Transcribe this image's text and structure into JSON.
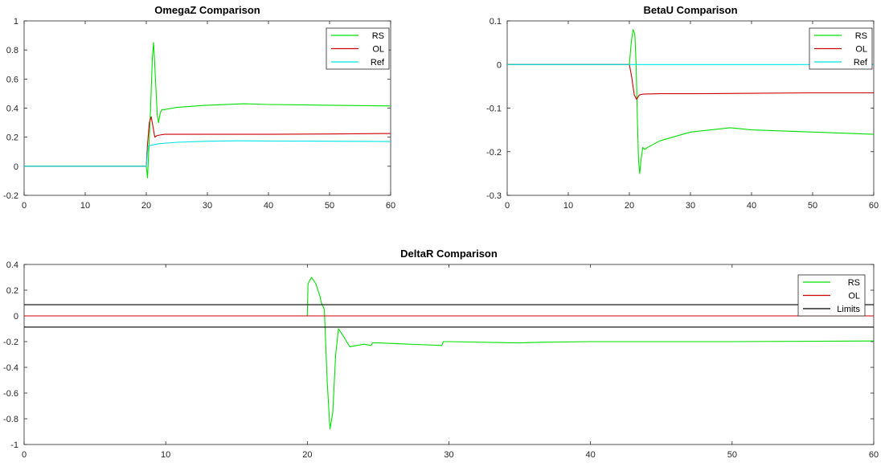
{
  "chart_data": [
    {
      "type": "line",
      "title": "OmegaZ Comparison",
      "xlabel": "",
      "ylabel": "",
      "xlim": [
        0,
        60
      ],
      "ylim": [
        -0.2,
        1
      ],
      "xticks": [
        0,
        10,
        20,
        30,
        40,
        50,
        60
      ],
      "xtick_labels": [
        "0",
        "10",
        "20",
        "30",
        "40",
        "50",
        "60"
      ],
      "yticks": [
        -0.2,
        0,
        0.2,
        0.4,
        0.6,
        0.8,
        1
      ],
      "ytick_labels": [
        "-0.2",
        "0",
        "0.2",
        "0.4",
        "0.6",
        "0.8",
        "1"
      ],
      "grid": false,
      "legend_position": "top-right",
      "series": [
        {
          "name": "RS",
          "color": "#00e000",
          "x": [
            0,
            20,
            20.2,
            20.4,
            20.7,
            21,
            21.2,
            21.5,
            21.8,
            22,
            22.3,
            22.6,
            23,
            25,
            30,
            36,
            40,
            50,
            60
          ],
          "y": [
            0,
            0,
            -0.08,
            0.1,
            0.4,
            0.75,
            0.85,
            0.6,
            0.35,
            0.3,
            0.37,
            0.39,
            0.39,
            0.405,
            0.42,
            0.43,
            0.425,
            0.42,
            0.415
          ]
        },
        {
          "name": "OL",
          "color": "#cc0000",
          "x": [
            0,
            20,
            20.2,
            20.5,
            20.8,
            21.1,
            21.4,
            21.7,
            22.2,
            23,
            30,
            40,
            50,
            60
          ],
          "y": [
            0,
            0,
            0.15,
            0.3,
            0.34,
            0.27,
            0.2,
            0.21,
            0.215,
            0.22,
            0.22,
            0.22,
            0.222,
            0.225
          ]
        },
        {
          "name": "Ref",
          "color": "#00e5e5",
          "x": [
            0,
            20,
            20.3,
            22,
            25,
            30,
            35,
            40,
            50,
            60
          ],
          "y": [
            0,
            0,
            0.14,
            0.155,
            0.165,
            0.172,
            0.175,
            0.174,
            0.172,
            0.17
          ]
        }
      ]
    },
    {
      "type": "line",
      "title": "BetaU Comparison",
      "xlabel": "",
      "ylabel": "",
      "xlim": [
        0,
        60
      ],
      "ylim": [
        -0.3,
        0.1
      ],
      "xticks": [
        0,
        10,
        20,
        30,
        40,
        50,
        60
      ],
      "xtick_labels": [
        "0",
        "10",
        "20",
        "30",
        "40",
        "50",
        "60"
      ],
      "yticks": [
        -0.3,
        -0.2,
        -0.1,
        0,
        0.1
      ],
      "ytick_labels": [
        "-0.3",
        "-0.2",
        "-0.1",
        "0",
        "0.1"
      ],
      "grid": false,
      "legend_position": "top-right",
      "series": [
        {
          "name": "RS",
          "color": "#00e000",
          "x": [
            0,
            20,
            20.3,
            20.6,
            20.9,
            21.1,
            21.3,
            21.5,
            21.7,
            21.9,
            22.2,
            22.5,
            23,
            25,
            30,
            36.5,
            40,
            50,
            60
          ],
          "y": [
            0,
            0,
            0.05,
            0.08,
            0.07,
            0,
            -0.12,
            -0.22,
            -0.25,
            -0.22,
            -0.19,
            -0.195,
            -0.19,
            -0.175,
            -0.155,
            -0.145,
            -0.15,
            -0.155,
            -0.16
          ]
        },
        {
          "name": "OL",
          "color": "#cc0000",
          "x": [
            0,
            20,
            20.4,
            20.8,
            21.2,
            21.6,
            22.2,
            25,
            30,
            40,
            50,
            60
          ],
          "y": [
            0,
            0,
            -0.03,
            -0.07,
            -0.08,
            -0.07,
            -0.068,
            -0.067,
            -0.067,
            -0.066,
            -0.065,
            -0.065
          ]
        },
        {
          "name": "Ref",
          "color": "#00e5e5",
          "x": [
            0,
            60
          ],
          "y": [
            0,
            0
          ]
        }
      ]
    },
    {
      "type": "line",
      "title": "DeltaR Comparison",
      "xlabel": "",
      "ylabel": "",
      "xlim": [
        0,
        60
      ],
      "ylim": [
        -1,
        0.4
      ],
      "xticks": [
        0,
        10,
        20,
        30,
        40,
        50,
        60
      ],
      "xtick_labels": [
        "0",
        "10",
        "20",
        "30",
        "40",
        "50",
        "60"
      ],
      "yticks": [
        -1,
        -0.8,
        -0.6,
        -0.4,
        -0.2,
        0,
        0.2,
        0.4
      ],
      "ytick_labels": [
        "-1",
        "-0.8",
        "-0.6",
        "-0.4",
        "-0.2",
        "0",
        "0.2",
        "0.4"
      ],
      "grid": false,
      "legend_position": "top-right",
      "series": [
        {
          "name": "RS",
          "color": "#00e000",
          "x": [
            0,
            20,
            20.05,
            20.3,
            20.6,
            20.9,
            21,
            21.2,
            21.4,
            21.6,
            21.8,
            22,
            22.2,
            22.5,
            23,
            23.5,
            24,
            24.5,
            24.6,
            25,
            29.5,
            29.6,
            30,
            35,
            36.5,
            40,
            50,
            60
          ],
          "y": [
            0,
            0,
            0.25,
            0.3,
            0.25,
            0.15,
            0.1,
            0.05,
            -0.5,
            -0.88,
            -0.75,
            -0.3,
            -0.1,
            -0.15,
            -0.24,
            -0.23,
            -0.22,
            -0.23,
            -0.21,
            -0.21,
            -0.23,
            -0.2,
            -0.2,
            -0.21,
            -0.205,
            -0.2,
            -0.2,
            -0.195
          ]
        },
        {
          "name": "OL",
          "color": "#cc0000",
          "x": [
            0,
            60
          ],
          "y": [
            0,
            0
          ]
        },
        {
          "name": "Limits",
          "color": "#000000",
          "x": [
            0,
            60
          ],
          "y": [
            0.087,
            0.087
          ]
        },
        {
          "name": "",
          "color": "#000000",
          "x": [
            0,
            60
          ],
          "y": [
            -0.087,
            -0.087
          ]
        }
      ]
    }
  ]
}
